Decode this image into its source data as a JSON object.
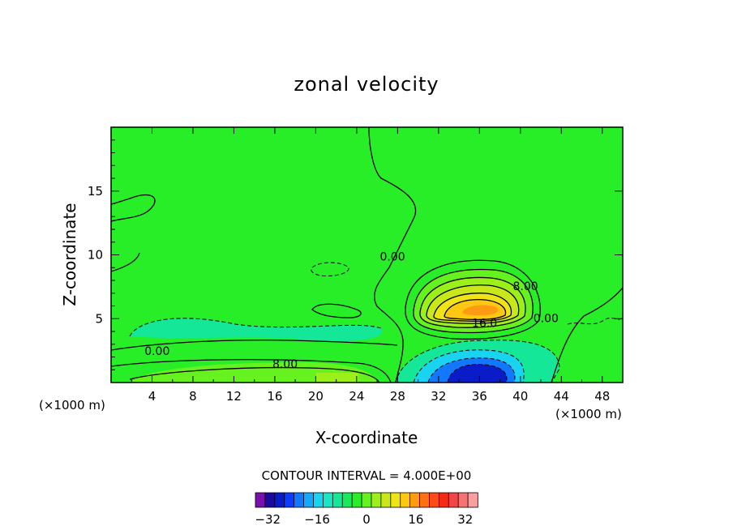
{
  "chart_data": {
    "type": "heatmap",
    "title": "zonal velocity",
    "xlabel": "X-coordinate",
    "ylabel": "Z-coordinate",
    "x_unit_left": "(×1000 m)",
    "x_unit_right": "(×1000 m)",
    "xlim": [
      0,
      50
    ],
    "ylim": [
      0,
      20
    ],
    "x_ticks": [
      "4",
      "8",
      "12",
      "16",
      "20",
      "24",
      "28",
      "32",
      "36",
      "40",
      "44",
      "48"
    ],
    "y_ticks": [
      "5",
      "10",
      "15"
    ],
    "grid": false,
    "contour_interval_text": "CONTOUR INTERVAL = 4.000E+00",
    "contour_labels": [
      {
        "text": "0.00",
        "x": 27.5,
        "z": 9.8
      },
      {
        "text": "8.00",
        "x": 40.5,
        "z": 7.5
      },
      {
        "text": "0.00",
        "x": 42.5,
        "z": 5.0
      },
      {
        "text": "16.0",
        "x": 36.5,
        "z": 4.6
      },
      {
        "text": "0.00",
        "x": 4.5,
        "z": 2.4
      },
      {
        "text": "8.00",
        "x": 17.0,
        "z": 1.4
      }
    ],
    "colorbar": {
      "min": -36,
      "max": 36,
      "step": 4,
      "tick_labels": [
        "-32",
        "-16",
        "0",
        "16",
        "32"
      ],
      "tick_values": [
        -32,
        -16,
        0,
        16,
        32
      ],
      "colors": [
        "#7a0fb0",
        "#1c0aa0",
        "#0a1cc8",
        "#0b3cff",
        "#1278ff",
        "#14a8ff",
        "#18d4f0",
        "#1ae6c6",
        "#14e898",
        "#18ea5c",
        "#28ee28",
        "#66f21e",
        "#9cf01a",
        "#c8e81a",
        "#eee418",
        "#fcc812",
        "#ff9a12",
        "#ff7014",
        "#ff4a1a",
        "#f62a14",
        "#f04646",
        "#f47474",
        "#f8a0a0"
      ]
    },
    "features": [
      {
        "name": "jet_core_max",
        "x": 35.5,
        "z": 6.5,
        "value": 28
      },
      {
        "name": "lower_negative_min",
        "x": 35.5,
        "z": 0.6,
        "value": -30
      },
      {
        "name": "surface_band",
        "x": 21,
        "z": 0.5,
        "value": 14
      }
    ]
  }
}
